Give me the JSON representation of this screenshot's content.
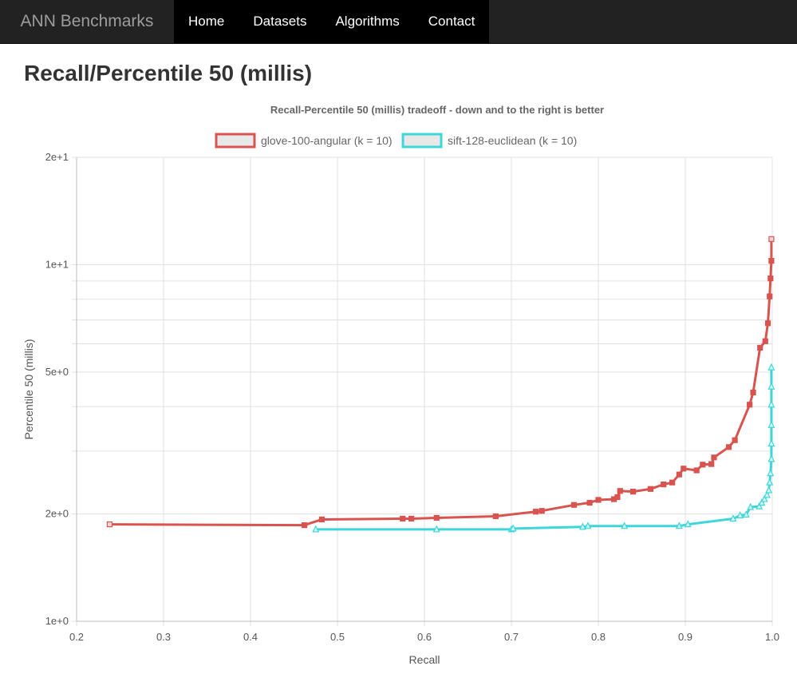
{
  "navbar": {
    "brand": "ANN Benchmarks",
    "links": [
      "Home",
      "Datasets",
      "Algorithms",
      "Contact"
    ]
  },
  "page": {
    "title": "Recall/Percentile 50 (millis)"
  },
  "colors": {
    "series_red": "#d9534f",
    "series_cyan": "#3dd6d9",
    "grid": "#e0e0e0",
    "nav_bg": "#222222"
  },
  "chart_data": {
    "type": "line",
    "title": "Recall-Percentile 50 (millis) tradeoff - down and to the right is better",
    "xlabel": "Recall",
    "ylabel": "Percentile 50 (millis)",
    "xlim": [
      0.2,
      1.0
    ],
    "ylim": [
      1,
      20
    ],
    "yscale": "log",
    "grid": true,
    "legend_position": "top",
    "x_ticks": [
      0.2,
      0.3,
      0.4,
      0.5,
      0.6,
      0.7,
      0.8,
      0.9,
      1.0
    ],
    "x_tick_labels": [
      "0.2",
      "0.3",
      "0.4",
      "0.5",
      "0.6",
      "0.7",
      "0.8",
      "0.9",
      "1.0"
    ],
    "y_labeled_ticks": [
      1,
      2,
      5,
      10,
      20
    ],
    "y_tick_labels": [
      "1e+0",
      "2e+0",
      "5e+0",
      "1e+1",
      "2e+1"
    ],
    "y_grid_values": [
      1,
      2,
      3,
      4,
      5,
      6,
      7,
      8,
      9,
      10,
      20
    ],
    "series": [
      {
        "name": "glove-100-angular (k = 10)",
        "color": "#d9534f",
        "marker": "square",
        "points": [
          [
            0.238,
            1.87
          ],
          [
            0.462,
            1.86
          ],
          [
            0.482,
            1.93
          ],
          [
            0.575,
            1.94
          ],
          [
            0.585,
            1.94
          ],
          [
            0.614,
            1.95
          ],
          [
            0.682,
            1.97
          ],
          [
            0.728,
            2.03
          ],
          [
            0.735,
            2.04
          ],
          [
            0.772,
            2.12
          ],
          [
            0.79,
            2.15
          ],
          [
            0.8,
            2.19
          ],
          [
            0.818,
            2.2
          ],
          [
            0.822,
            2.23
          ],
          [
            0.825,
            2.32
          ],
          [
            0.84,
            2.31
          ],
          [
            0.86,
            2.35
          ],
          [
            0.875,
            2.42
          ],
          [
            0.885,
            2.45
          ],
          [
            0.893,
            2.58
          ],
          [
            0.898,
            2.68
          ],
          [
            0.913,
            2.65
          ],
          [
            0.92,
            2.75
          ],
          [
            0.93,
            2.76
          ],
          [
            0.933,
            2.88
          ],
          [
            0.95,
            3.08
          ],
          [
            0.957,
            3.22
          ],
          [
            0.974,
            4.05
          ],
          [
            0.978,
            4.38
          ],
          [
            0.986,
            5.85
          ],
          [
            0.992,
            6.1
          ],
          [
            0.995,
            6.85
          ],
          [
            0.997,
            8.15
          ],
          [
            0.998,
            9.15
          ],
          [
            0.999,
            10.25
          ],
          [
            0.999,
            11.8
          ]
        ]
      },
      {
        "name": "sift-128-euclidean (k = 10)",
        "color": "#3dd6d9",
        "marker": "triangle",
        "points": [
          [
            0.475,
            1.81
          ],
          [
            0.614,
            1.81
          ],
          [
            0.7,
            1.81
          ],
          [
            0.702,
            1.82
          ],
          [
            0.782,
            1.84
          ],
          [
            0.788,
            1.85
          ],
          [
            0.83,
            1.85
          ],
          [
            0.893,
            1.85
          ],
          [
            0.903,
            1.87
          ],
          [
            0.955,
            1.94
          ],
          [
            0.963,
            1.98
          ],
          [
            0.97,
            1.99
          ],
          [
            0.975,
            2.09
          ],
          [
            0.985,
            2.1
          ],
          [
            0.988,
            2.15
          ],
          [
            0.991,
            2.2
          ],
          [
            0.994,
            2.26
          ],
          [
            0.996,
            2.33
          ],
          [
            0.997,
            2.45
          ],
          [
            0.998,
            2.6
          ],
          [
            0.999,
            2.85
          ],
          [
            0.999,
            3.15
          ],
          [
            0.999,
            3.55
          ],
          [
            0.999,
            4.05
          ],
          [
            0.999,
            4.55
          ],
          [
            0.999,
            5.15
          ]
        ]
      }
    ]
  }
}
